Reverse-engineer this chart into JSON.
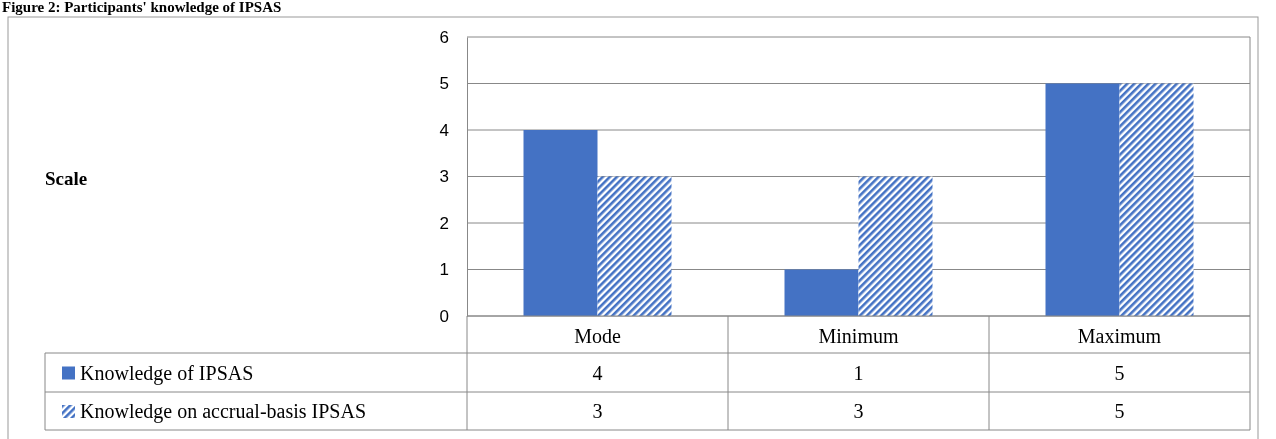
{
  "chart_data": {
    "type": "bar",
    "title": "Figure 2: Participants' knowledge of IPSAS",
    "annotations": [
      "Scale"
    ],
    "categories": [
      "Mode",
      "Minimum",
      "Maximum"
    ],
    "series": [
      {
        "name": "Knowledge of IPSAS",
        "color": "#4472c4",
        "values": [
          4,
          1,
          5
        ]
      },
      {
        "name": "Knowledge on accrual-basis IPSAS",
        "color": "#4472c4",
        "values": [
          3,
          3,
          5
        ]
      }
    ],
    "ylim": [
      0,
      6
    ],
    "yticks": [
      0,
      1,
      2,
      3,
      4,
      5,
      6
    ],
    "grid": "y",
    "legend": "bottom",
    "data_labels": true
  }
}
